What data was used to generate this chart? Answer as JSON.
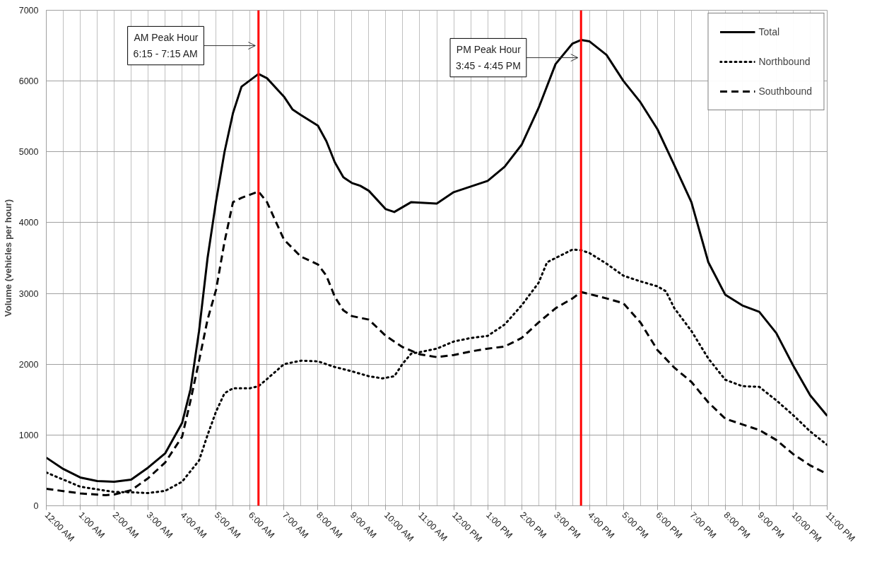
{
  "chart_data": {
    "type": "line",
    "ylabel": "Volume (vehicles per hour)",
    "xlim": [
      0,
      23
    ],
    "ylim": [
      0,
      7000
    ],
    "xticks": [
      {
        "value": 0,
        "label": "12:00 AM"
      },
      {
        "value": 1,
        "label": "1:00 AM"
      },
      {
        "value": 2,
        "label": "2:00 AM"
      },
      {
        "value": 3,
        "label": "3:00 AM"
      },
      {
        "value": 4,
        "label": "4:00 AM"
      },
      {
        "value": 5,
        "label": "5:00 AM"
      },
      {
        "value": 6,
        "label": "6:00 AM"
      },
      {
        "value": 7,
        "label": "7:00 AM"
      },
      {
        "value": 8,
        "label": "8:00 AM"
      },
      {
        "value": 9,
        "label": "9:00 AM"
      },
      {
        "value": 10,
        "label": "10:00 AM"
      },
      {
        "value": 11,
        "label": "11:00 AM"
      },
      {
        "value": 12,
        "label": "12:00 PM"
      },
      {
        "value": 13,
        "label": "1:00 PM"
      },
      {
        "value": 14,
        "label": "2:00 PM"
      },
      {
        "value": 15,
        "label": "3:00 PM"
      },
      {
        "value": 16,
        "label": "4:00 PM"
      },
      {
        "value": 17,
        "label": "5:00 PM"
      },
      {
        "value": 18,
        "label": "6:00 PM"
      },
      {
        "value": 19,
        "label": "7:00 PM"
      },
      {
        "value": 20,
        "label": "8:00 PM"
      },
      {
        "value": 21,
        "label": "9:00 PM"
      },
      {
        "value": 22,
        "label": "10:00 PM"
      },
      {
        "value": 23,
        "label": "11:00 PM"
      }
    ],
    "yticks": [
      0,
      1000,
      2000,
      3000,
      4000,
      5000,
      6000,
      7000
    ],
    "grid": true,
    "legend": "top right",
    "marker": "none",
    "series": [
      {
        "name": "Total",
        "color": "#000000",
        "line_style": "solid",
        "x": [
          0,
          0.5,
          1,
          1.5,
          2,
          2.5,
          3,
          3.5,
          4,
          4.25,
          4.5,
          4.75,
          5,
          5.25,
          5.5,
          5.75,
          6.25,
          6.5,
          7,
          7.25,
          7.5,
          8,
          8.25,
          8.5,
          8.75,
          9,
          9.25,
          9.5,
          10,
          10.25,
          10.75,
          11.5,
          12,
          12.5,
          13,
          13.5,
          14,
          14.5,
          15,
          15.5,
          15.75,
          16,
          16.5,
          17,
          17.5,
          18,
          18.5,
          19,
          19.5,
          20,
          20.5,
          21,
          21.5,
          22,
          22.5,
          23
        ],
        "values": [
          680,
          520,
          400,
          350,
          340,
          370,
          540,
          740,
          1170,
          1650,
          2470,
          3500,
          4300,
          5000,
          5550,
          5920,
          6100,
          6040,
          5780,
          5600,
          5520,
          5370,
          5150,
          4850,
          4640,
          4560,
          4520,
          4450,
          4190,
          4150,
          4290,
          4270,
          4430,
          4510,
          4590,
          4790,
          5100,
          5620,
          6240,
          6530,
          6580,
          6560,
          6370,
          6000,
          5700,
          5320,
          4810,
          4290,
          3440,
          2980,
          2830,
          2740,
          2440,
          1980,
          1560,
          1270
        ]
      },
      {
        "name": "Northbound",
        "color": "#000000",
        "line_style": "dotted",
        "x": [
          0,
          1,
          2,
          2.5,
          3,
          3.5,
          4,
          4.5,
          4.75,
          5,
          5.25,
          5.5,
          6,
          6.25,
          6.5,
          7,
          7.5,
          8,
          8.5,
          9,
          9.5,
          9.9,
          10.25,
          10.5,
          10.75,
          11,
          11.5,
          12,
          12.5,
          13,
          13.5,
          14,
          14.5,
          14.75,
          15.5,
          15.75,
          16,
          16.5,
          17,
          17.5,
          18,
          18.25,
          18.5,
          19,
          19.5,
          20,
          20.5,
          21,
          21.5,
          22,
          22.5,
          23
        ],
        "values": [
          470,
          270,
          195,
          190,
          180,
          210,
          340,
          640,
          1000,
          1330,
          1590,
          1660,
          1660,
          1690,
          1790,
          2000,
          2050,
          2040,
          1960,
          1900,
          1830,
          1800,
          1830,
          2010,
          2150,
          2170,
          2220,
          2320,
          2370,
          2400,
          2560,
          2830,
          3150,
          3440,
          3620,
          3610,
          3570,
          3420,
          3250,
          3170,
          3100,
          3030,
          2790,
          2470,
          2080,
          1780,
          1690,
          1680,
          1490,
          1280,
          1050,
          860
        ]
      },
      {
        "name": "Southbound",
        "color": "#000000",
        "line_style": "dashed",
        "x": [
          0,
          1,
          1.75,
          2,
          2.5,
          3,
          3.5,
          4,
          4.25,
          4.5,
          4.75,
          5,
          5.25,
          5.5,
          5.75,
          6.25,
          6.5,
          7,
          7.5,
          8,
          8.25,
          8.5,
          8.75,
          9,
          9.5,
          10,
          10.5,
          11,
          11.5,
          12,
          12.5,
          13,
          13.5,
          14,
          14.5,
          15,
          15.5,
          15.75,
          16.5,
          17,
          17.5,
          18,
          18.5,
          19,
          19.5,
          20,
          20.5,
          21,
          21.5,
          22,
          22.5,
          23
        ],
        "values": [
          240,
          175,
          150,
          160,
          220,
          390,
          610,
          975,
          1490,
          2050,
          2630,
          3050,
          3730,
          4290,
          4350,
          4440,
          4290,
          3760,
          3520,
          3410,
          3250,
          2950,
          2760,
          2680,
          2630,
          2400,
          2240,
          2140,
          2100,
          2130,
          2180,
          2220,
          2250,
          2370,
          2590,
          2790,
          2930,
          3020,
          2930,
          2860,
          2590,
          2200,
          1950,
          1750,
          1460,
          1230,
          1150,
          1070,
          930,
          730,
          570,
          450
        ]
      }
    ],
    "ref_lines": [
      {
        "axis": "x",
        "value": 6.25,
        "color": "#ff0000"
      },
      {
        "axis": "x",
        "value": 15.75,
        "color": "#ff0000"
      }
    ],
    "annotations": [
      {
        "text": "AM Peak Hour\n6:15 - 7:15 AM",
        "x": 6.25,
        "y": 6500
      },
      {
        "text": "PM Peak Hour\n3:45 - 4:45 PM",
        "x": 15.75,
        "y": 6330
      }
    ]
  }
}
